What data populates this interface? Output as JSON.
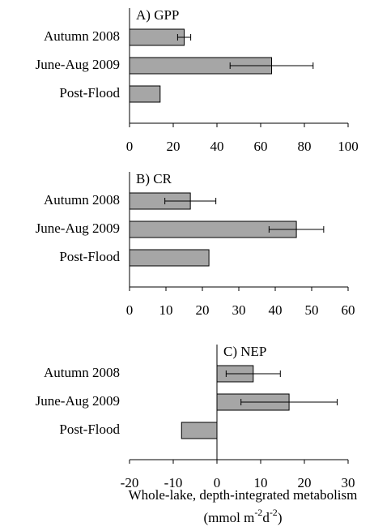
{
  "chart_data": [
    {
      "type": "bar",
      "title": "A) GPP",
      "categories": [
        "Autumn 2008",
        "June-Aug 2009",
        "Post-Flood"
      ],
      "values": [
        25,
        65,
        14
      ],
      "errors": [
        3,
        19,
        null
      ],
      "color": "#a6a6a6",
      "xlim": [
        0,
        100
      ],
      "xticks": [
        0,
        20,
        40,
        60,
        80,
        100
      ]
    },
    {
      "type": "bar",
      "title": "B) CR",
      "categories": [
        "Autumn 2008",
        "June-Aug 2009",
        "Post-Flood"
      ],
      "values": [
        16.7,
        45.8,
        21.8
      ],
      "errors": [
        7,
        7.5,
        null
      ],
      "color": "#a6a6a6",
      "xlim": [
        0,
        60
      ],
      "xticks": [
        0,
        10,
        20,
        30,
        40,
        50,
        60
      ]
    },
    {
      "type": "bar",
      "title": "C) NEP",
      "categories": [
        "Autumn 2008",
        "June-Aug 2009",
        "Post-Flood"
      ],
      "values": [
        8.3,
        16.5,
        -8.1
      ],
      "errors": [
        6.2,
        11,
        null
      ],
      "color": "#a6a6a6",
      "xlim": [
        -20,
        30
      ],
      "xticks": [
        -20,
        -10,
        0,
        10,
        20,
        30
      ],
      "xlabel": [
        "Whole-lake, depth-integrated metabolism",
        [
          "(mmol m",
          "-2",
          "d",
          "-2",
          ")"
        ]
      ]
    }
  ]
}
